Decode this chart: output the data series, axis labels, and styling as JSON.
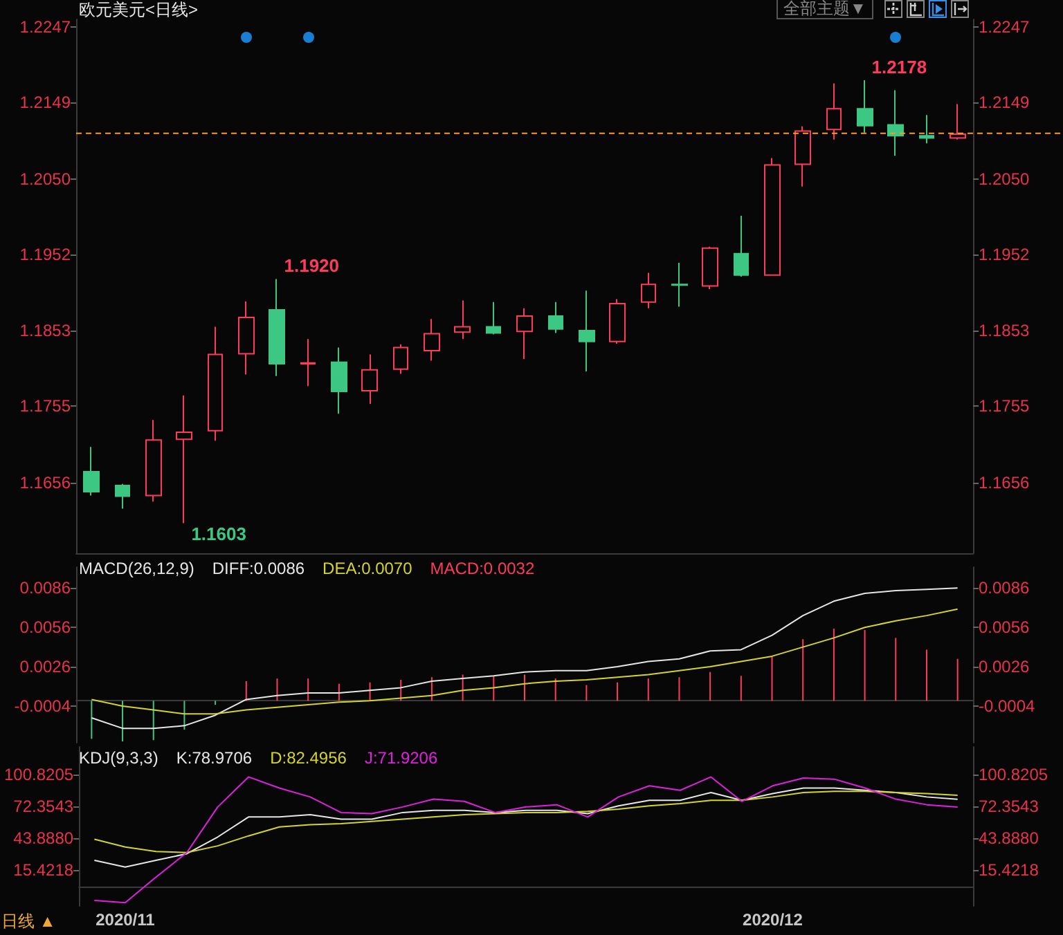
{
  "chart_data": [
    {
      "type": "candlestick",
      "title": "欧元美元<日线>",
      "categories": [
        null,
        "2020/11",
        null,
        null,
        null,
        null,
        null,
        null,
        null,
        null,
        null,
        null,
        null,
        null,
        null,
        null,
        null,
        null,
        null,
        null,
        null,
        null,
        "2020/12",
        null,
        null,
        null,
        null,
        null,
        null
      ],
      "ohlc": [
        [
          1.167,
          1.1702,
          1.1639,
          1.1644
        ],
        [
          1.1652,
          1.1654,
          1.1622,
          1.1638
        ],
        [
          1.1639,
          1.1737,
          1.1631,
          1.1711
        ],
        [
          1.1712,
          1.1769,
          1.1603,
          1.1721
        ],
        [
          1.1723,
          1.1858,
          1.171,
          1.1822
        ],
        [
          1.1823,
          1.1891,
          1.1796,
          1.187
        ],
        [
          1.188,
          1.192,
          1.1794,
          1.181
        ],
        [
          1.181,
          1.1842,
          1.1781,
          1.1811
        ],
        [
          1.1812,
          1.1831,
          1.1745,
          1.1774
        ],
        [
          1.1775,
          1.1822,
          1.1758,
          1.1802
        ],
        [
          1.1803,
          1.1835,
          1.1797,
          1.1831
        ],
        [
          1.1827,
          1.1868,
          1.1814,
          1.1849
        ],
        [
          1.1851,
          1.1892,
          1.1842,
          1.1858
        ],
        [
          1.1858,
          1.189,
          1.1848,
          1.185
        ],
        [
          1.1852,
          1.1882,
          1.1816,
          1.1872
        ],
        [
          1.1872,
          1.189,
          1.185,
          1.1855
        ],
        [
          1.1853,
          1.1905,
          1.18,
          1.1839
        ],
        [
          1.1839,
          1.1894,
          1.1836,
          1.1888
        ],
        [
          1.189,
          1.1928,
          1.1882,
          1.1913
        ],
        [
          1.1913,
          1.1941,
          1.1884,
          1.1912
        ],
        [
          1.1911,
          1.1962,
          1.1907,
          1.196
        ],
        [
          1.1953,
          1.2002,
          1.1923,
          1.1925
        ],
        [
          1.1925,
          1.2077,
          1.1925,
          1.2068
        ],
        [
          1.2069,
          1.2118,
          1.204,
          1.2112
        ],
        [
          1.2114,
          1.2174,
          1.2101,
          1.2141
        ],
        [
          1.2141,
          1.2178,
          1.211,
          1.2119
        ],
        [
          1.212,
          1.2165,
          1.208,
          1.2106
        ],
        [
          1.2106,
          1.2133,
          1.2096,
          1.2103
        ],
        [
          1.2103,
          1.2147,
          1.2101,
          1.2108
        ]
      ],
      "colors": [
        "#3cc882",
        "#3cc882",
        "#ff3b5c",
        "#ff3b5c",
        "#ff3b5c",
        "#ff3b5c",
        "#3cc882",
        "#ff3b5c",
        "#3cc882",
        "#ff3b5c",
        "#ff3b5c",
        "#ff3b5c",
        "#ff3b5c",
        "#3cc882",
        "#ff3b5c",
        "#3cc882",
        "#3cc882",
        "#ff3b5c",
        "#ff3b5c",
        "#3cc882",
        "#ff3b5c",
        "#3cc882",
        "#ff3b5c",
        "#ff3b5c",
        "#ff3b5c",
        "#3cc882",
        "#3cc882",
        "#3cc882",
        "#ff3b5c"
      ],
      "ylim": [
        1.1564,
        1.2257
      ],
      "yticks": [
        1.2247,
        1.2149,
        {
          "value": 1.205,
          "label": "1.2050"
        },
        1.1952,
        1.1853,
        1.1755,
        1.1656
      ],
      "y2lim": [
        1.1564,
        1.2257
      ],
      "y2ticks": [
        1.2247,
        1.2149,
        {
          "value": 1.205,
          "label": "1.2050"
        },
        1.1952,
        1.1853,
        1.1755,
        1.1656
      ],
      "ref_lines": [
        {
          "axis": "y",
          "value": 1.2109,
          "color": "#ff9a1e",
          "line_style": "dashed"
        }
      ],
      "annotations": [
        "全部主题▼"
      ],
      "value_labels": [
        null,
        null,
        null,
        "1.1603",
        null,
        null,
        "1.1920",
        null,
        null,
        null,
        null,
        null,
        null,
        null,
        null,
        null,
        null,
        null,
        null,
        null,
        null,
        null,
        null,
        null,
        null,
        "1.2178",
        null,
        null,
        null
      ],
      "tick_labels": "y"
    },
    {
      "type": "line",
      "title": "MACD(26,12,9)",
      "categories": [
        null,
        "2020/11",
        null,
        null,
        null,
        null,
        null,
        null,
        null,
        null,
        null,
        null,
        null,
        null,
        null,
        null,
        null,
        null,
        null,
        null,
        null,
        null,
        "2020/12",
        null,
        null,
        null,
        null,
        null,
        null
      ],
      "series": [
        {
          "name": "DIFF:0.0086",
          "color": "#e6e6e6",
          "values": [
            -0.0013,
            -0.0021,
            -0.0021,
            -0.0019,
            -0.0011,
            0.0001,
            0.0004,
            0.0006,
            0.0006,
            0.0008,
            0.001,
            0.0015,
            0.0017,
            0.0019,
            0.0022,
            0.0023,
            0.0023,
            0.0026,
            0.003,
            0.0032,
            0.0038,
            0.0039,
            0.005,
            0.0065,
            0.0076,
            0.0082,
            0.0084,
            0.0085,
            0.0086
          ]
        },
        {
          "name": "DEA:0.0070",
          "color": "#d4d42a",
          "values": [
            0.0001,
            -0.0004,
            -0.0007,
            -0.001,
            -0.001,
            -0.0007,
            -0.0005,
            -0.0003,
            -0.0001,
            0.0,
            0.0002,
            0.0004,
            0.0008,
            0.001,
            0.0013,
            0.0015,
            0.0016,
            0.0018,
            0.002,
            0.0023,
            0.0026,
            0.003,
            0.0034,
            0.0041,
            0.0048,
            0.0056,
            0.0061,
            0.0065,
            0.007
          ]
        },
        {
          "name": "MACD:0.0032",
          "type": "bar",
          "colors": [
            "#3cc882",
            "#3cc882",
            "#3cc882",
            "#3cc882",
            "#3cc882",
            "#ff3b5c",
            "#ff3b5c",
            "#ff3b5c",
            "#ff3b5c",
            "#ff3b5c",
            "#ff3b5c",
            "#ff3b5c",
            "#ff3b5c",
            "#ff3b5c",
            "#ff3b5c",
            "#ff3b5c",
            "#ff3b5c",
            "#ff3b5c",
            "#ff3b5c",
            "#ff3b5c",
            "#ff3b5c",
            "#ff3b5c",
            "#ff3b5c",
            "#ff3b5c",
            "#ff3b5c",
            "#ff3b5c",
            "#ff3b5c",
            "#ff3b5c",
            "#ff3b5c"
          ],
          "values": [
            -0.0029,
            -0.0031,
            -0.003,
            -0.0022,
            -0.0003,
            0.0015,
            0.0017,
            0.0017,
            0.0013,
            0.0014,
            0.0016,
            0.0018,
            0.002,
            0.0019,
            0.002,
            0.0017,
            0.0012,
            0.0014,
            0.0017,
            0.0018,
            0.0022,
            0.0019,
            0.0034,
            0.0047,
            0.0055,
            0.0054,
            0.0048,
            0.0039,
            0.0032
          ]
        }
      ],
      "ylim": [
        -0.0032,
        0.0102
      ],
      "yticks": [
        0.0086,
        0.0056,
        0.0026,
        -0.0004
      ],
      "y2lim": [
        -0.0032,
        0.0102
      ],
      "y2ticks": [
        0.0086,
        0.0056,
        0.0026,
        -0.0004
      ],
      "legend": "top left",
      "marker": "none",
      "tick_labels": "y"
    },
    {
      "type": "line",
      "title": "KDJ(9,3,3)",
      "categories": [
        null,
        "2020/11",
        null,
        null,
        null,
        null,
        null,
        null,
        null,
        null,
        null,
        null,
        null,
        null,
        null,
        null,
        null,
        null,
        null,
        null,
        null,
        null,
        "2020/12",
        null,
        null,
        null,
        null,
        null,
        null
      ],
      "series": [
        {
          "name": "K:78.9706",
          "color": "#e6e6e6",
          "values": [
            24,
            18,
            24,
            30,
            45,
            63,
            63,
            65,
            61,
            61,
            67,
            69,
            69,
            67,
            69,
            69,
            66,
            73,
            78,
            78,
            85,
            78,
            84,
            89,
            89,
            87,
            85,
            81,
            78.9706
          ]
        },
        {
          "name": "D:82.4956",
          "color": "#d4d42a",
          "values": [
            43,
            36,
            32,
            31,
            37,
            46,
            54,
            56,
            57,
            59,
            61,
            63,
            65,
            66,
            67,
            67,
            68,
            70,
            73,
            75,
            78,
            78,
            81,
            85,
            86,
            86,
            85,
            84,
            82.4956
          ]
        },
        {
          "name": "J:71.9206",
          "color": "#e020e0",
          "values": [
            -12,
            -14,
            9,
            31,
            72,
            99,
            89,
            81,
            67,
            66,
            72,
            79,
            77,
            67,
            72,
            74,
            63,
            81,
            91,
            87,
            99,
            77,
            91,
            98,
            97,
            89,
            79,
            74,
            71.9206
          ]
        }
      ],
      "ylim": [
        -17,
        126
      ],
      "yticks": [
        100.8205,
        72.3543,
        {
          "value": 43.888,
          "label": "43.8880"
        },
        15.4218
      ],
      "y2lim": [
        -17,
        126
      ],
      "y2ticks": [
        100.8205,
        72.3543,
        {
          "value": 43.888,
          "label": "43.8880"
        },
        15.4218
      ],
      "legend": "top left",
      "marker": "none",
      "annotations": [
        "日线 ▲"
      ]
    }
  ]
}
